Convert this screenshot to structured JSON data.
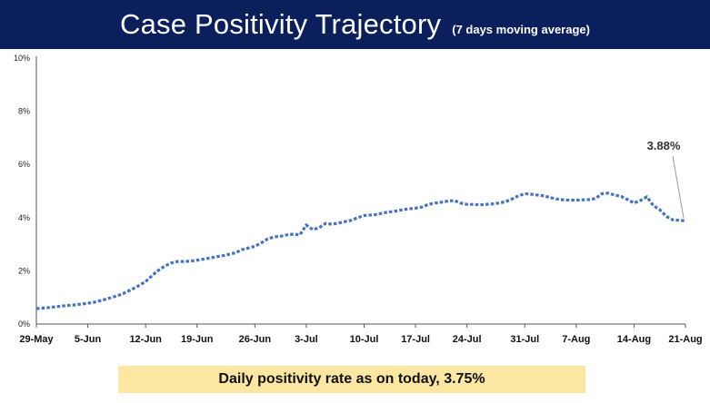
{
  "header": {
    "title": "Case Positivity Trajectory",
    "subtitle": "(7 days moving average)"
  },
  "callout": {
    "text": "Daily positivity rate as on today, 3.75%"
  },
  "colors": {
    "header_bg": "#0b1f5c",
    "line": "#4472c4",
    "callout_bg": "#fbe7a1"
  },
  "chart_data": {
    "type": "line",
    "title": "Case Positivity Trajectory",
    "subtitle": "(7 days moving average)",
    "xlabel": "",
    "ylabel": "",
    "ylim": [
      0,
      10
    ],
    "y_ticks": [
      "0%",
      "2%",
      "4%",
      "6%",
      "8%",
      "10%"
    ],
    "y_tick_values": [
      0,
      2,
      4,
      6,
      8,
      10
    ],
    "x_ticks": [
      "29-May",
      "5-Jun",
      "12-Jun",
      "19-Jun",
      "26-Jun",
      "3-Jul",
      "10-Jul",
      "17-Jul",
      "24-Jul",
      "31-Jul",
      "7-Aug",
      "14-Aug",
      "21-Aug"
    ],
    "grid": false,
    "series": [
      {
        "style": "dotted",
        "x_start": "29-May",
        "x_end": "21-Aug",
        "values": [
          0.58,
          0.6,
          0.62,
          0.65,
          0.68,
          0.7,
          0.72,
          0.75,
          0.78,
          0.82,
          0.88,
          0.95,
          1.02,
          1.1,
          1.2,
          1.32,
          1.45,
          1.6,
          1.82,
          2.02,
          2.18,
          2.3,
          2.35,
          2.35,
          2.37,
          2.4,
          2.44,
          2.48,
          2.53,
          2.57,
          2.62,
          2.68,
          2.8,
          2.86,
          2.92,
          3.05,
          3.2,
          3.28,
          3.3,
          3.35,
          3.38,
          3.35,
          3.72,
          3.55,
          3.62,
          3.78,
          3.75,
          3.8,
          3.85,
          3.9,
          4.0,
          4.08,
          4.1,
          4.12,
          4.18,
          4.22,
          4.25,
          4.3,
          4.33,
          4.36,
          4.4,
          4.5,
          4.55,
          4.58,
          4.62,
          4.65,
          4.55,
          4.5,
          4.5,
          4.48,
          4.5,
          4.52,
          4.55,
          4.6,
          4.7,
          4.82,
          4.9,
          4.88,
          4.85,
          4.82,
          4.75,
          4.7,
          4.67,
          4.66,
          4.66,
          4.67,
          4.68,
          4.72,
          4.9,
          4.92,
          4.85,
          4.8,
          4.68,
          4.55,
          4.65,
          4.78,
          4.45,
          4.3,
          4.05,
          3.92,
          3.9,
          3.88
        ]
      }
    ],
    "annotations": [
      {
        "text": "3.88%",
        "x": "21-Aug",
        "y": 3.88
      }
    ]
  }
}
